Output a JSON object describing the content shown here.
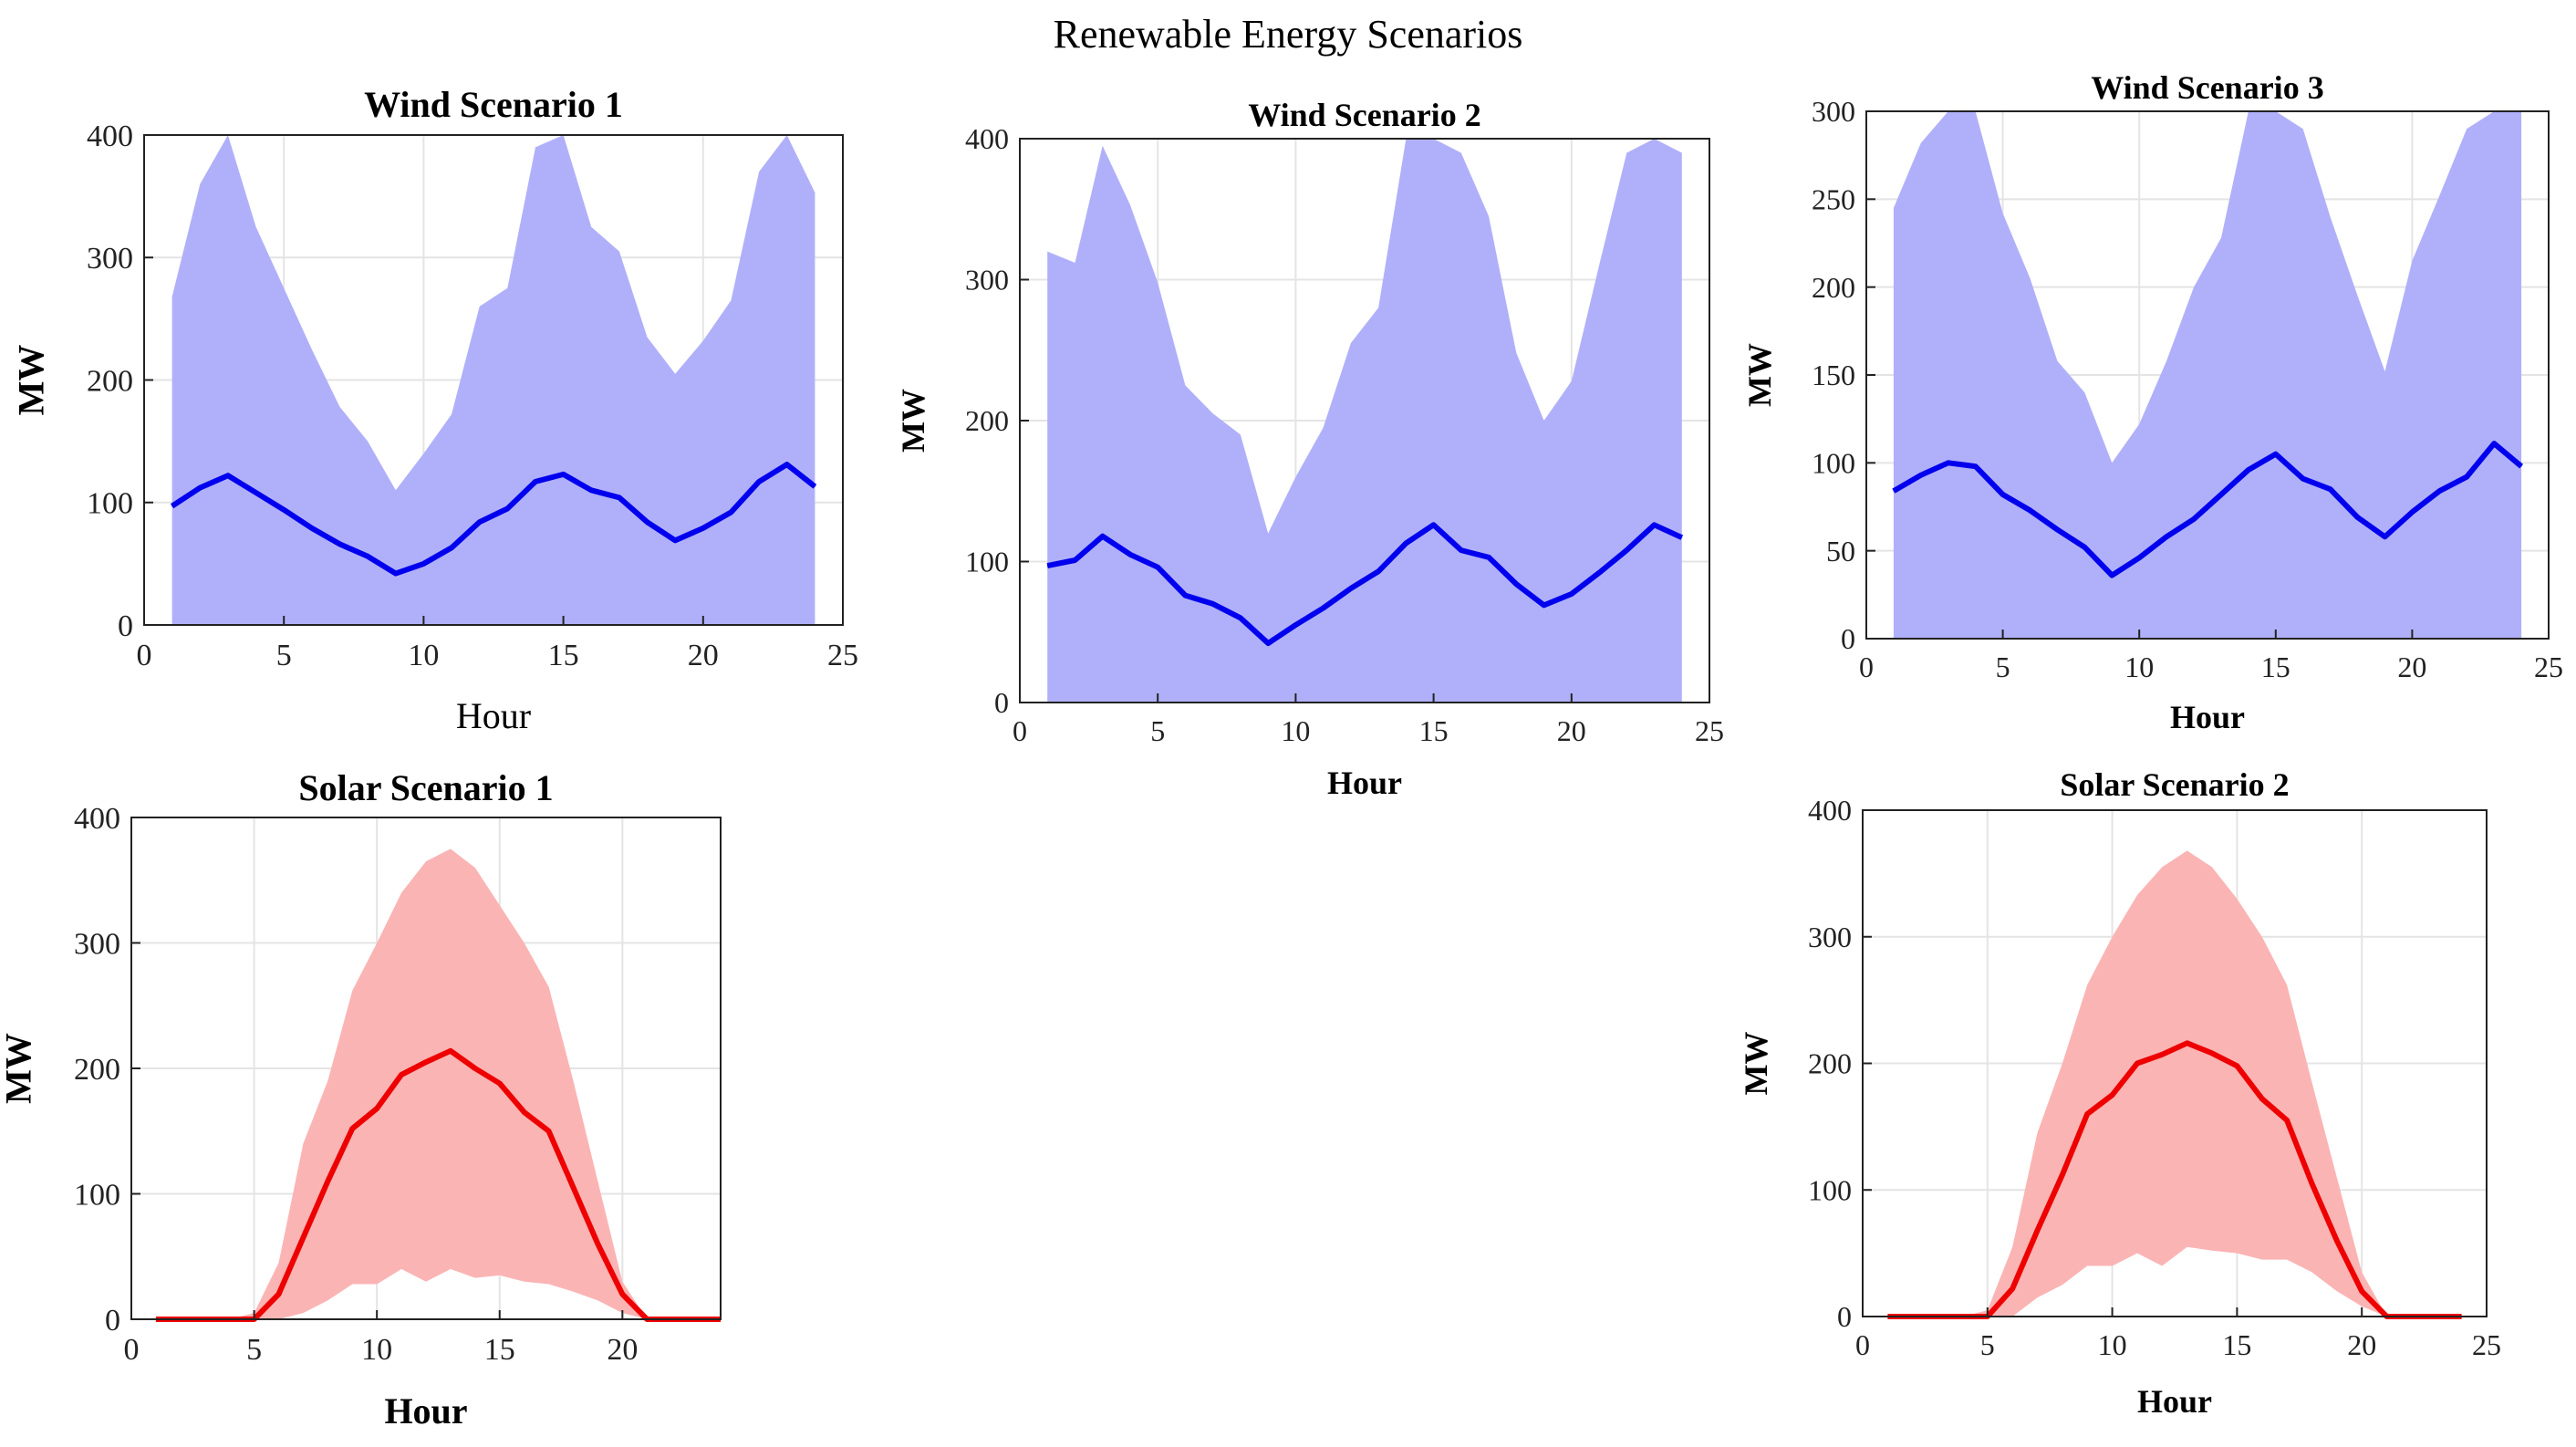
{
  "figure": {
    "title": "Renewable Energy Scenarios"
  },
  "colors": {
    "wind_fill": "#b0b0fa",
    "wind_line": "#0000ee",
    "solar_fill": "#fbb4b4",
    "solar_line": "#ee0000",
    "grid": "#e4e4e4",
    "axis": "#222222"
  },
  "chart_data": [
    {
      "id": "wind1",
      "type": "area",
      "title": "Wind Scenario 1",
      "xlabel": "Hour",
      "ylabel": "MW",
      "title_bold": true,
      "xlabel_bold": false,
      "xlim": [
        0,
        25
      ],
      "ylim": [
        0,
        400
      ],
      "xticks": [
        "0",
        "5",
        "10",
        "15",
        "20",
        "25"
      ],
      "xtick_values": [
        0,
        5,
        10,
        15,
        20,
        25
      ],
      "yticks": [
        "0",
        "100",
        "200",
        "300",
        "400"
      ],
      "ytick_values": [
        0,
        100,
        200,
        300,
        400
      ],
      "grid": true,
      "style": "wind",
      "x": [
        1,
        2,
        3,
        4,
        5,
        6,
        7,
        8,
        9,
        10,
        11,
        12,
        13,
        14,
        15,
        16,
        17,
        18,
        19,
        20,
        21,
        22,
        23,
        24
      ],
      "upper": [
        268,
        360,
        400,
        325,
        275,
        225,
        178,
        150,
        110,
        140,
        172,
        260,
        275,
        390,
        400,
        325,
        305,
        235,
        205,
        232,
        265,
        370,
        400,
        353
      ],
      "lower": [
        0,
        0,
        0,
        0,
        0,
        0,
        0,
        0,
        0,
        0,
        0,
        0,
        0,
        0,
        0,
        0,
        0,
        0,
        0,
        0,
        0,
        0,
        0,
        0
      ],
      "mean": [
        97,
        112,
        122,
        108,
        94,
        79,
        66,
        56,
        42,
        50,
        63,
        84,
        95,
        117,
        123,
        110,
        104,
        84,
        69,
        79,
        92,
        117,
        131,
        113
      ]
    },
    {
      "id": "wind2",
      "type": "area",
      "title": "Wind Scenario 2",
      "xlabel": "Hour",
      "ylabel": "MW",
      "title_bold": true,
      "xlabel_bold": true,
      "xlim": [
        0,
        25
      ],
      "ylim": [
        0,
        400
      ],
      "xticks": [
        "0",
        "5",
        "10",
        "15",
        "20",
        "25"
      ],
      "xtick_values": [
        0,
        5,
        10,
        15,
        20,
        25
      ],
      "yticks": [
        "0",
        "100",
        "200",
        "300",
        "400"
      ],
      "ytick_values": [
        0,
        100,
        200,
        300,
        400
      ],
      "grid": true,
      "style": "wind",
      "x": [
        1,
        2,
        3,
        4,
        5,
        6,
        7,
        8,
        9,
        10,
        11,
        12,
        13,
        14,
        15,
        16,
        17,
        18,
        19,
        20,
        21,
        22,
        23,
        24
      ],
      "upper": [
        320,
        312,
        395,
        353,
        298,
        225,
        205,
        190,
        120,
        160,
        195,
        255,
        280,
        400,
        400,
        390,
        345,
        248,
        200,
        228,
        310,
        390,
        400,
        390
      ],
      "lower": [
        0,
        0,
        0,
        0,
        0,
        0,
        0,
        0,
        0,
        0,
        0,
        0,
        0,
        0,
        0,
        0,
        0,
        0,
        0,
        0,
        0,
        0,
        0,
        0
      ],
      "mean": [
        97,
        101,
        118,
        105,
        96,
        76,
        70,
        60,
        42,
        55,
        67,
        81,
        93,
        113,
        126,
        108,
        103,
        84,
        69,
        77,
        92,
        108,
        126,
        117
      ]
    },
    {
      "id": "wind3",
      "type": "area",
      "title": "Wind Scenario 3",
      "xlabel": "Hour",
      "ylabel": "MW",
      "title_bold": true,
      "xlabel_bold": true,
      "xlim": [
        0,
        25
      ],
      "ylim": [
        0,
        300
      ],
      "xticks": [
        "0",
        "5",
        "10",
        "15",
        "20",
        "25"
      ],
      "xtick_values": [
        0,
        5,
        10,
        15,
        20,
        25
      ],
      "yticks": [
        "0",
        "50",
        "100",
        "150",
        "200",
        "250",
        "300"
      ],
      "ytick_values": [
        0,
        50,
        100,
        150,
        200,
        250,
        300
      ],
      "grid": true,
      "style": "wind",
      "x": [
        1,
        2,
        3,
        4,
        5,
        6,
        7,
        8,
        9,
        10,
        11,
        12,
        13,
        14,
        15,
        16,
        17,
        18,
        19,
        20,
        21,
        22,
        23,
        24
      ],
      "upper": [
        245,
        282,
        300,
        300,
        242,
        205,
        158,
        140,
        100,
        122,
        158,
        200,
        228,
        300,
        300,
        290,
        240,
        195,
        152,
        215,
        252,
        290,
        300,
        300
      ],
      "lower": [
        0,
        0,
        0,
        0,
        0,
        0,
        0,
        0,
        0,
        0,
        0,
        0,
        0,
        0,
        0,
        0,
        0,
        0,
        0,
        0,
        0,
        0,
        0,
        0
      ],
      "mean": [
        84,
        93,
        100,
        98,
        82,
        73,
        62,
        52,
        36,
        46,
        58,
        68,
        82,
        96,
        105,
        91,
        85,
        69,
        58,
        72,
        84,
        92,
        111,
        98
      ]
    },
    {
      "id": "solar1",
      "type": "area",
      "title": "Solar Scenario 1",
      "xlabel": "Hour",
      "ylabel": "MW",
      "title_bold": true,
      "xlabel_bold": true,
      "xlim": [
        0,
        24
      ],
      "ylim": [
        0,
        400
      ],
      "xticks": [
        "0",
        "5",
        "10",
        "15",
        "20"
      ],
      "xtick_values": [
        0,
        5,
        10,
        15,
        20
      ],
      "yticks": [
        "0",
        "100",
        "200",
        "300",
        "400"
      ],
      "ytick_values": [
        0,
        100,
        200,
        300,
        400
      ],
      "grid": true,
      "style": "solar",
      "x": [
        1,
        2,
        3,
        4,
        5,
        6,
        7,
        8,
        9,
        10,
        11,
        12,
        13,
        14,
        15,
        16,
        17,
        18,
        19,
        20,
        21,
        22,
        23,
        24
      ],
      "upper": [
        0,
        0,
        0,
        0,
        5,
        45,
        140,
        190,
        262,
        300,
        340,
        365,
        375,
        360,
        330,
        300,
        265,
        190,
        110,
        30,
        0,
        0,
        0,
        0
      ],
      "lower": [
        0,
        0,
        0,
        0,
        0,
        0,
        5,
        15,
        28,
        28,
        40,
        30,
        40,
        33,
        35,
        30,
        28,
        22,
        15,
        5,
        0,
        0,
        0,
        0
      ],
      "mean": [
        0,
        0,
        0,
        0,
        0,
        20,
        65,
        110,
        152,
        168,
        195,
        205,
        214,
        200,
        188,
        165,
        150,
        105,
        60,
        20,
        0,
        0,
        0,
        0
      ]
    },
    {
      "id": "solar2",
      "type": "area",
      "title": "Solar Scenario 2",
      "xlabel": "Hour",
      "ylabel": "MW",
      "title_bold": true,
      "xlabel_bold": true,
      "xlim": [
        0,
        25
      ],
      "ylim": [
        0,
        400
      ],
      "xticks": [
        "0",
        "5",
        "10",
        "15",
        "20",
        "25"
      ],
      "xtick_values": [
        0,
        5,
        10,
        15,
        20,
        25
      ],
      "yticks": [
        "0",
        "100",
        "200",
        "300",
        "400"
      ],
      "ytick_values": [
        0,
        100,
        200,
        300,
        400
      ],
      "grid": true,
      "style": "solar",
      "x": [
        1,
        2,
        3,
        4,
        5,
        6,
        7,
        8,
        9,
        10,
        11,
        12,
        13,
        14,
        15,
        16,
        17,
        18,
        19,
        20,
        21,
        22,
        23,
        24
      ],
      "upper": [
        0,
        0,
        0,
        0,
        5,
        55,
        145,
        200,
        262,
        300,
        333,
        355,
        368,
        355,
        330,
        300,
        262,
        185,
        110,
        35,
        0,
        0,
        0,
        0
      ],
      "lower": [
        0,
        0,
        0,
        0,
        0,
        0,
        15,
        25,
        40,
        40,
        50,
        40,
        55,
        52,
        50,
        45,
        45,
        35,
        20,
        8,
        0,
        0,
        0,
        0
      ],
      "mean": [
        0,
        0,
        0,
        0,
        0,
        22,
        68,
        112,
        160,
        175,
        200,
        207,
        216,
        208,
        198,
        172,
        155,
        105,
        60,
        20,
        0,
        0,
        0,
        0
      ]
    }
  ]
}
